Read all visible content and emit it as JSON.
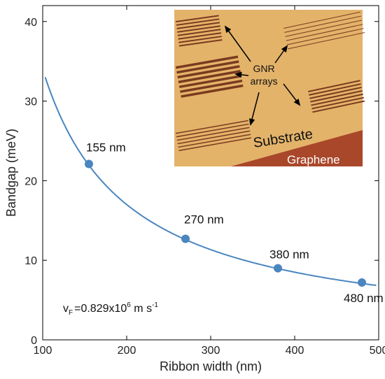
{
  "chart_data": {
    "type": "line",
    "xlabel": "Ribbon width (nm)",
    "ylabel": "Bandgap (meV)",
    "xlim": [
      100,
      500
    ],
    "ylim": [
      0,
      42
    ],
    "x_ticks": [
      100,
      200,
      300,
      400,
      500
    ],
    "y_ticks": [
      0,
      10,
      20,
      30,
      40
    ],
    "grid": false,
    "series": [
      {
        "type": "curve",
        "color": "#4a86bf",
        "x_range": [
          103,
          497
        ],
        "formula_note": "E = 3400 / w (meV, w in nm)"
      },
      {
        "type": "scatter",
        "color": "#4a86bf",
        "points": [
          {
            "x": 155,
            "y": 22.1,
            "label": "155 nm"
          },
          {
            "x": 270,
            "y": 12.7,
            "label": "270 nm"
          },
          {
            "x": 380,
            "y": 9.0,
            "label": "380 nm"
          },
          {
            "x": 480,
            "y": 7.2,
            "label": "480 nm"
          }
        ]
      }
    ],
    "annotation": {
      "prefix": "v",
      "sub": "F",
      "middle": "=0.829x10",
      "sup1": "6",
      "unit": " m s",
      "sup2": "-1"
    },
    "inset": {
      "labels": {
        "gnr": "GNR",
        "arrays": "arrays",
        "substrate": "Substrate",
        "graphene": "Graphene"
      },
      "colors": {
        "substrate": "#e3b36a",
        "graphene": "#a9472a",
        "stripes": "#7a3a1e"
      }
    }
  }
}
